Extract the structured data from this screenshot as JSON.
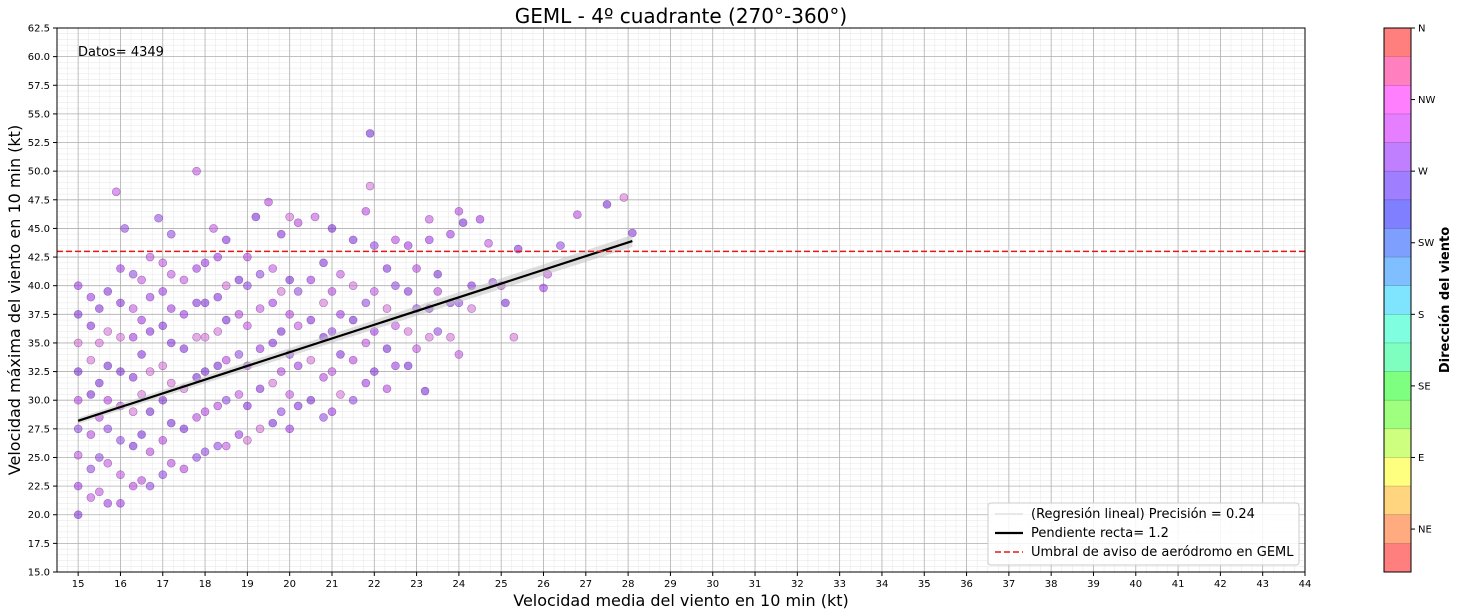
{
  "chart_data": {
    "type": "scatter",
    "title": "GEML - 4º cuadrante (270°-360°)",
    "xlabel": "Velocidad media del viento en 10 min (kt)",
    "ylabel": "Velocidad máxima del viento en 10 min (kt)",
    "xlim": [
      14.5,
      44
    ],
    "ylim": [
      15,
      62.5
    ],
    "x_ticks": [
      15,
      16,
      17,
      18,
      19,
      20,
      21,
      22,
      23,
      24,
      25,
      26,
      27,
      28,
      29,
      30,
      31,
      32,
      33,
      34,
      35,
      36,
      37,
      38,
      39,
      40,
      41,
      42,
      43,
      44
    ],
    "y_ticks": [
      "15.0",
      "17.5",
      "20.0",
      "22.5",
      "25.0",
      "27.5",
      "30.0",
      "32.5",
      "35.0",
      "37.5",
      "40.0",
      "42.5",
      "45.0",
      "47.5",
      "50.0",
      "52.5",
      "55.0",
      "57.5",
      "60.0",
      "62.5"
    ],
    "grid": true,
    "annotation": "Datos= 4349",
    "regression": {
      "x_start": 15,
      "x_end": 28.1,
      "y_start": 28.2,
      "y_end": 43.9
    },
    "threshold": 43.0,
    "legend": {
      "placement": "lower-right",
      "entries": [
        "(Regresión lineal) Precisión = 0.24",
        "Pendiente recta= 1.2",
        "Umbral de aviso de aeródromo en GEML"
      ]
    },
    "colorbar": {
      "label": "Dirección del viento",
      "tick_labels": [
        "N",
        "NW",
        "W",
        "SW",
        "S",
        "SE",
        "E",
        "NE"
      ],
      "colors": [
        "#ff7f7f",
        "#ff7fbf",
        "#ff7fff",
        "#e57fff",
        "#bf7fff",
        "#9f7fff",
        "#7f7fff",
        "#7f9fff",
        "#7fbfff",
        "#7fe5ff",
        "#7fffdf",
        "#7fffbf",
        "#7fff7f",
        "#9fff7f",
        "#cfff7f",
        "#ffff7f",
        "#ffd57f",
        "#ffaa7f",
        "#ff7f7f"
      ]
    },
    "series": [
      {
        "points": [
          [
            15,
            20.0
          ],
          [
            15,
            22.5
          ],
          [
            15,
            25.2
          ],
          [
            15,
            27.5
          ],
          [
            15,
            30.0
          ],
          [
            15,
            32.5
          ],
          [
            15,
            35.0
          ],
          [
            15,
            37.5
          ],
          [
            15,
            40.0
          ],
          [
            15.3,
            21.5
          ],
          [
            15.3,
            24.0
          ],
          [
            15.3,
            27.0
          ],
          [
            15.3,
            30.5
          ],
          [
            15.3,
            33.5
          ],
          [
            15.3,
            36.5
          ],
          [
            15.3,
            39.0
          ],
          [
            15.5,
            22.0
          ],
          [
            15.5,
            25.0
          ],
          [
            15.5,
            28.5
          ],
          [
            15.5,
            31.5
          ],
          [
            15.5,
            35.0
          ],
          [
            15.5,
            38.0
          ],
          [
            15.7,
            21.0
          ],
          [
            15.7,
            24.5
          ],
          [
            15.7,
            27.5
          ],
          [
            15.7,
            30.0
          ],
          [
            15.7,
            33.0
          ],
          [
            15.7,
            36.0
          ],
          [
            15.7,
            39.5
          ],
          [
            16,
            21.0
          ],
          [
            16,
            23.5
          ],
          [
            16,
            26.5
          ],
          [
            16,
            29.5
          ],
          [
            16,
            32.5
          ],
          [
            16,
            35.5
          ],
          [
            16,
            38.5
          ],
          [
            16,
            41.5
          ],
          [
            15.9,
            48.2
          ],
          [
            16.1,
            45.0
          ],
          [
            16.3,
            22.5
          ],
          [
            16.3,
            26.0
          ],
          [
            16.3,
            29.0
          ],
          [
            16.3,
            32.0
          ],
          [
            16.3,
            35.5
          ],
          [
            16.3,
            38.0
          ],
          [
            16.3,
            41.0
          ],
          [
            16.5,
            23.0
          ],
          [
            16.5,
            27.0
          ],
          [
            16.5,
            30.5
          ],
          [
            16.5,
            34.0
          ],
          [
            16.5,
            37.0
          ],
          [
            16.5,
            40.5
          ],
          [
            16.7,
            22.5
          ],
          [
            16.7,
            25.5
          ],
          [
            16.7,
            29.0
          ],
          [
            16.7,
            32.5
          ],
          [
            16.7,
            36.0
          ],
          [
            16.7,
            39.0
          ],
          [
            16.7,
            42.5
          ],
          [
            17,
            23.5
          ],
          [
            17,
            26.5
          ],
          [
            17,
            30.0
          ],
          [
            17,
            33.0
          ],
          [
            17,
            36.5
          ],
          [
            17,
            39.5
          ],
          [
            17,
            42.0
          ],
          [
            16.9,
            45.9
          ],
          [
            17.2,
            24.5
          ],
          [
            17.2,
            28.0
          ],
          [
            17.2,
            31.5
          ],
          [
            17.2,
            35.0
          ],
          [
            17.2,
            38.0
          ],
          [
            17.2,
            41.0
          ],
          [
            17.2,
            44.5
          ],
          [
            17.5,
            24.0
          ],
          [
            17.5,
            27.5
          ],
          [
            17.5,
            31.0
          ],
          [
            17.5,
            34.5
          ],
          [
            17.5,
            37.5
          ],
          [
            17.5,
            40.5
          ],
          [
            17.8,
            25.0
          ],
          [
            17.8,
            28.5
          ],
          [
            17.8,
            32.0
          ],
          [
            17.8,
            35.5
          ],
          [
            17.8,
            38.5
          ],
          [
            17.8,
            41.5
          ],
          [
            17.8,
            50.0
          ],
          [
            18,
            25.5
          ],
          [
            18,
            29.0
          ],
          [
            18,
            32.5
          ],
          [
            18,
            35.5
          ],
          [
            18,
            38.5
          ],
          [
            18,
            42.0
          ],
          [
            18.2,
            45.0
          ],
          [
            18.3,
            26.0
          ],
          [
            18.3,
            29.5
          ],
          [
            18.3,
            33.0
          ],
          [
            18.3,
            36.0
          ],
          [
            18.3,
            39.0
          ],
          [
            18.3,
            42.5
          ],
          [
            18.5,
            26.0
          ],
          [
            18.5,
            30.0
          ],
          [
            18.5,
            33.5
          ],
          [
            18.5,
            37.0
          ],
          [
            18.5,
            40.0
          ],
          [
            18.5,
            44.0
          ],
          [
            18.8,
            27.0
          ],
          [
            18.8,
            30.5
          ],
          [
            18.8,
            34.0
          ],
          [
            18.8,
            37.5
          ],
          [
            18.8,
            40.5
          ],
          [
            19,
            26.5
          ],
          [
            19,
            29.5
          ],
          [
            19,
            33.0
          ],
          [
            19,
            36.5
          ],
          [
            19,
            40.0
          ],
          [
            19,
            42.5
          ],
          [
            19.2,
            46.0
          ],
          [
            19.3,
            27.5
          ],
          [
            19.3,
            31.0
          ],
          [
            19.3,
            34.5
          ],
          [
            19.3,
            38.0
          ],
          [
            19.3,
            41.0
          ],
          [
            19.5,
            47.3
          ],
          [
            19.6,
            28.0
          ],
          [
            19.6,
            31.5
          ],
          [
            19.6,
            35.0
          ],
          [
            19.6,
            38.5
          ],
          [
            19.6,
            41.5
          ],
          [
            19.8,
            29.0
          ],
          [
            19.8,
            32.5
          ],
          [
            19.8,
            36.0
          ],
          [
            19.8,
            39.5
          ],
          [
            19.8,
            44.5
          ],
          [
            20,
            27.5
          ],
          [
            20,
            30.5
          ],
          [
            20,
            34.0
          ],
          [
            20,
            37.5
          ],
          [
            20,
            40.5
          ],
          [
            20,
            46.0
          ],
          [
            20.2,
            29.5
          ],
          [
            20.2,
            33.0
          ],
          [
            20.2,
            36.5
          ],
          [
            20.2,
            39.5
          ],
          [
            20.2,
            45.5
          ],
          [
            20.5,
            30.0
          ],
          [
            20.5,
            33.5
          ],
          [
            20.5,
            37.0
          ],
          [
            20.5,
            40.5
          ],
          [
            20.6,
            46.0
          ],
          [
            20.8,
            28.5
          ],
          [
            20.8,
            32.0
          ],
          [
            20.8,
            35.5
          ],
          [
            20.8,
            38.5
          ],
          [
            20.8,
            42.0
          ],
          [
            21,
            29.0
          ],
          [
            21,
            32.5
          ],
          [
            21,
            36.0
          ],
          [
            21,
            39.5
          ],
          [
            21,
            45.0
          ],
          [
            21.2,
            30.5
          ],
          [
            21.2,
            34.0
          ],
          [
            21.2,
            37.5
          ],
          [
            21.2,
            41.0
          ],
          [
            21.5,
            30.0
          ],
          [
            21.5,
            33.5
          ],
          [
            21.5,
            37.0
          ],
          [
            21.5,
            40.0
          ],
          [
            21.5,
            44.0
          ],
          [
            21.8,
            31.5
          ],
          [
            21.8,
            35.0
          ],
          [
            21.8,
            38.5
          ],
          [
            21.8,
            46.5
          ],
          [
            21.9,
            53.3
          ],
          [
            21.9,
            48.7
          ],
          [
            22,
            32.5
          ],
          [
            22,
            36.0
          ],
          [
            22,
            39.5
          ],
          [
            22,
            43.5
          ],
          [
            22.3,
            31.0
          ],
          [
            22.3,
            34.5
          ],
          [
            22.3,
            38.0
          ],
          [
            22.3,
            41.5
          ],
          [
            22.5,
            33.0
          ],
          [
            22.5,
            36.5
          ],
          [
            22.5,
            40.0
          ],
          [
            22.5,
            44.0
          ],
          [
            22.8,
            33.0
          ],
          [
            22.8,
            36.0
          ],
          [
            22.8,
            39.5
          ],
          [
            22.8,
            43.5
          ],
          [
            23,
            34.5
          ],
          [
            23,
            38.0
          ],
          [
            23,
            41.5
          ],
          [
            23.2,
            30.8
          ],
          [
            23.3,
            35.5
          ],
          [
            23.3,
            38.0
          ],
          [
            23.3,
            44.0
          ],
          [
            23.3,
            45.8
          ],
          [
            23.5,
            36.0
          ],
          [
            23.5,
            39.5
          ],
          [
            23.5,
            41.0
          ],
          [
            23.8,
            35.5
          ],
          [
            23.8,
            38.5
          ],
          [
            23.8,
            44.5
          ],
          [
            24,
            34.0
          ],
          [
            24,
            38.5
          ],
          [
            24,
            46.5
          ],
          [
            24.1,
            45.5
          ],
          [
            24.3,
            38.0
          ],
          [
            24.3,
            40.0
          ],
          [
            24.5,
            45.8
          ],
          [
            24.7,
            43.7
          ],
          [
            24.8,
            40.3
          ],
          [
            25,
            40.0
          ],
          [
            25.1,
            38.5
          ],
          [
            25.3,
            35.5
          ],
          [
            25.4,
            43.2
          ],
          [
            26,
            39.8
          ],
          [
            26.1,
            41.0
          ],
          [
            26.4,
            43.5
          ],
          [
            26.8,
            46.2
          ],
          [
            27.5,
            47.1
          ],
          [
            27.9,
            47.7
          ],
          [
            28.1,
            44.6
          ]
        ]
      }
    ]
  }
}
